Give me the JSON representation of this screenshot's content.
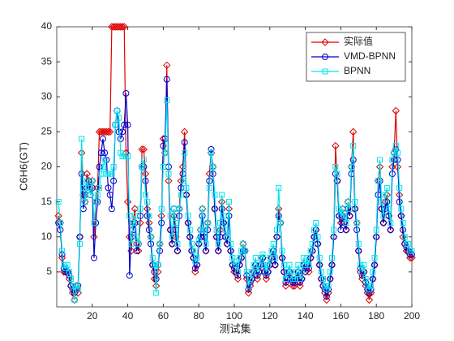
{
  "chart_data": {
    "type": "line",
    "xlabel": "测试集",
    "ylabel": "C6H6(GT)",
    "x": [
      1,
      2,
      3,
      4,
      5,
      6,
      7,
      8,
      9,
      10,
      11,
      12,
      13,
      14,
      15,
      16,
      17,
      18,
      19,
      20,
      21,
      22,
      23,
      24,
      25,
      26,
      27,
      28,
      29,
      30,
      31,
      32,
      33,
      34,
      35,
      36,
      37,
      38,
      39,
      40,
      41,
      42,
      43,
      44,
      45,
      46,
      47,
      48,
      49,
      50,
      51,
      52,
      53,
      54,
      55,
      56,
      57,
      58,
      59,
      60,
      61,
      62,
      63,
      64,
      65,
      66,
      67,
      68,
      69,
      70,
      71,
      72,
      73,
      74,
      75,
      76,
      77,
      78,
      79,
      80,
      81,
      82,
      83,
      84,
      85,
      86,
      87,
      88,
      89,
      90,
      91,
      92,
      93,
      94,
      95,
      96,
      97,
      98,
      99,
      100,
      101,
      102,
      103,
      104,
      105,
      106,
      107,
      108,
      109,
      110,
      111,
      112,
      113,
      114,
      115,
      116,
      117,
      118,
      119,
      120,
      121,
      122,
      123,
      124,
      125,
      126,
      127,
      128,
      129,
      130,
      131,
      132,
      133,
      134,
      135,
      136,
      137,
      138,
      139,
      140,
      141,
      142,
      143,
      144,
      145,
      146,
      147,
      148,
      149,
      150,
      151,
      152,
      153,
      154,
      155,
      156,
      157,
      158,
      159,
      160,
      161,
      162,
      163,
      164,
      165,
      166,
      167,
      168,
      169,
      170,
      171,
      172,
      173,
      174,
      175,
      176,
      177,
      178,
      179,
      180,
      181,
      182,
      183,
      184,
      185,
      186,
      187,
      188,
      189,
      190,
      191,
      192,
      193,
      194,
      195,
      196,
      197,
      198,
      199,
      200
    ],
    "series": [
      {
        "name": "实际值",
        "color": "#e00000",
        "marker": "diamond",
        "values": [
          13,
          12,
          7,
          5,
          5,
          5,
          4,
          3,
          2,
          1,
          3,
          2,
          10,
          22,
          16,
          15,
          19,
          18,
          17,
          18,
          10,
          15,
          17,
          25,
          25,
          25,
          25,
          25,
          25,
          25,
          40,
          40,
          40,
          40,
          40,
          40,
          40,
          40,
          22,
          15,
          10,
          8,
          12,
          14,
          9,
          8,
          12,
          22.5,
          22.5,
          19,
          14,
          12,
          10,
          6,
          4,
          3,
          5,
          9,
          13,
          24,
          22,
          34.5,
          18,
          11,
          9,
          13,
          10,
          8,
          14,
          18,
          20,
          25,
          16,
          12,
          10,
          8,
          7,
          5,
          6,
          9,
          11,
          14,
          10,
          8,
          12,
          19,
          22,
          20,
          14,
          10,
          8,
          11,
          15,
          12,
          10,
          9,
          14,
          8,
          6,
          5,
          5,
          4,
          6,
          7,
          9,
          8,
          4,
          2,
          3,
          4,
          5,
          6,
          4,
          5,
          6,
          7,
          5,
          4,
          5,
          6,
          7,
          8,
          6,
          10,
          14,
          12,
          7,
          5,
          3,
          4,
          5,
          4,
          3,
          3,
          4,
          5,
          3,
          4,
          6,
          5,
          6,
          5,
          7,
          8,
          10,
          11,
          9,
          6,
          4,
          3,
          2,
          1,
          2,
          4,
          6,
          10,
          23,
          18,
          13,
          12,
          14,
          12,
          11,
          15,
          13,
          20,
          25,
          14,
          12,
          8,
          5,
          4,
          5,
          3,
          2,
          1,
          2,
          4,
          6,
          10,
          18,
          20,
          14,
          12,
          15,
          16,
          13,
          11,
          20,
          22,
          28,
          20,
          16,
          13,
          10,
          9,
          8,
          8,
          7,
          7
        ]
      },
      {
        "name": "VMD-BPNN",
        "color": "#0000cc",
        "marker": "circle",
        "values": [
          12,
          11,
          7.5,
          5.5,
          5,
          5,
          4.5,
          3,
          2.5,
          2,
          2.5,
          3,
          10,
          19,
          14,
          16,
          17,
          18,
          16,
          17,
          7,
          12,
          15,
          20,
          22,
          24,
          22,
          21,
          17,
          16,
          14,
          18,
          26,
          28,
          25,
          24,
          25,
          26,
          30.5,
          26,
          4.5,
          10,
          11,
          12,
          8,
          9,
          13,
          20,
          20,
          18,
          13,
          11,
          9,
          6,
          5,
          4,
          6,
          8,
          12,
          23,
          24,
          32.5,
          20,
          11,
          9,
          14,
          11,
          8,
          13,
          17,
          19,
          23.5,
          16,
          12,
          10,
          8,
          7,
          5.5,
          6,
          9,
          10,
          13,
          10,
          8,
          11,
          18,
          22.5,
          19,
          14,
          10,
          8,
          10,
          14,
          12,
          10,
          9,
          13,
          8,
          6,
          5.5,
          5,
          4.5,
          6,
          7,
          8,
          8,
          4.5,
          2.5,
          3.5,
          4,
          5,
          6,
          4.5,
          5,
          6,
          7,
          5,
          4.5,
          5,
          6,
          7,
          8,
          6,
          10,
          13,
          12,
          7,
          5,
          3.5,
          4,
          5,
          4,
          3.5,
          3.5,
          4,
          5,
          3.5,
          4,
          6,
          5,
          6,
          5.5,
          7,
          8,
          10,
          11,
          9,
          6,
          4,
          3,
          2.5,
          1.5,
          2.5,
          4,
          6,
          10,
          19,
          18,
          13,
          11,
          13,
          12,
          11,
          14,
          13,
          19,
          21,
          14,
          11,
          8,
          5.5,
          4.5,
          5,
          3.5,
          2.5,
          2,
          2.5,
          4,
          6,
          10,
          16,
          18,
          14,
          12,
          14,
          15,
          13,
          11,
          19,
          21,
          22.5,
          21,
          15,
          13,
          11,
          9,
          8.5,
          8,
          7.5,
          7.5
        ]
      },
      {
        "name": "BPNN",
        "color": "#00e5ee",
        "marker": "square",
        "values": [
          15,
          12,
          8,
          6,
          5.5,
          6,
          5,
          4,
          3,
          1,
          3,
          2.5,
          9,
          24,
          17,
          15,
          18,
          17,
          16,
          18,
          12,
          15,
          16,
          17,
          19,
          20,
          21,
          19,
          19,
          19,
          19,
          20,
          26,
          28,
          27,
          22,
          21.5,
          21.5,
          21.5,
          21.5,
          13,
          9,
          12,
          13,
          10,
          9,
          14,
          20,
          21,
          16,
          15,
          13,
          10,
          7,
          6,
          2,
          6,
          9,
          14,
          20,
          22,
          29.5,
          19,
          13,
          10,
          14,
          12,
          9,
          14,
          16,
          18,
          22,
          17,
          13,
          11,
          9,
          8,
          6.5,
          7,
          9.5,
          11,
          14,
          11,
          9,
          12,
          17,
          22,
          20,
          16,
          11,
          9,
          12,
          16,
          13,
          11,
          10,
          15,
          9,
          7,
          6.5,
          6,
          5,
          7,
          8,
          9,
          8,
          5,
          3,
          4,
          5,
          6,
          7,
          5,
          6,
          7,
          7.5,
          6,
          5,
          6,
          7,
          8,
          9,
          7,
          11,
          17,
          12,
          8,
          6,
          4,
          5,
          6,
          5,
          4,
          4,
          5,
          6,
          4,
          5,
          7,
          6,
          7,
          6,
          8,
          9,
          11,
          12,
          10,
          7,
          5,
          4,
          3,
          2.5,
          3,
          5,
          7,
          11,
          20,
          19,
          14,
          13,
          14,
          13,
          12,
          15,
          14,
          20,
          23,
          15,
          12,
          9,
          6,
          5,
          6,
          4,
          3,
          2.5,
          3,
          5,
          7,
          11,
          18,
          21,
          15,
          13,
          16,
          17,
          14,
          12,
          21,
          22,
          23,
          22,
          17,
          14,
          12,
          10,
          9,
          9,
          8,
          8
        ]
      }
    ],
    "xlim": [
      0,
      200
    ],
    "xticks": [
      20,
      40,
      60,
      80,
      100,
      120,
      140,
      160,
      180,
      200
    ],
    "ylim": [
      0,
      40
    ],
    "yticks": [
      5,
      10,
      15,
      20,
      25,
      30,
      35,
      40
    ],
    "legend": "upper right"
  }
}
